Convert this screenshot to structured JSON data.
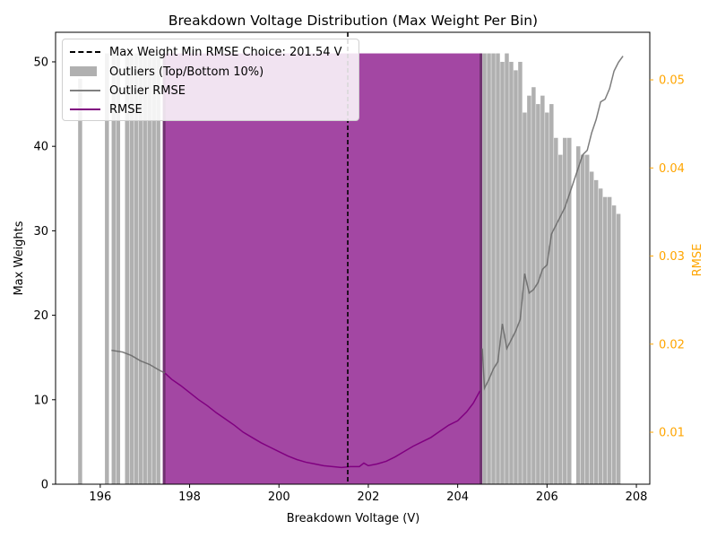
{
  "chart_data": {
    "type": "bar",
    "title": "Breakdown Voltage Distribution (Max Weight Per Bin)",
    "xlabel": "Breakdown Voltage (V)",
    "ylabel": "Max Weights",
    "y2label": "RMSE",
    "xlim": [
      195.0,
      208.3
    ],
    "ylim": [
      0,
      53.5
    ],
    "y2lim": [
      0.0041,
      0.0554
    ],
    "xticks": [
      196,
      198,
      200,
      202,
      204,
      206,
      208
    ],
    "yticks": [
      0,
      10,
      20,
      30,
      40,
      50
    ],
    "y2ticks": [
      0.01,
      0.02,
      0.03,
      0.04,
      0.05
    ],
    "y2_color": "#ffa500",
    "grid": false,
    "legend_position": "upper-left",
    "choice_line": {
      "x": 201.54,
      "label": "Max Weight Min RMSE Choice: 201.54 V"
    },
    "selected_region": {
      "x_start": 197.4,
      "x_end": 204.55,
      "height": 51,
      "color": "#800080"
    },
    "outlier_bars": {
      "name": "Outliers (Top/Bottom 10%)",
      "color": "#b0b0b0",
      "bin_width": 0.09,
      "x": [
        195.55,
        196.15,
        196.3,
        196.4,
        196.6,
        196.7,
        196.8,
        196.9,
        197.0,
        197.1,
        197.2,
        197.3,
        204.6,
        204.7,
        204.8,
        204.9,
        205.0,
        205.1,
        205.2,
        205.3,
        205.4,
        205.5,
        205.6,
        205.7,
        205.8,
        205.9,
        206.0,
        206.1,
        206.2,
        206.3,
        206.4,
        206.5,
        206.7,
        206.8,
        206.9,
        207.0,
        207.1,
        207.2,
        207.3,
        207.4,
        207.5,
        207.6
      ],
      "values": [
        48,
        51,
        51,
        51,
        51,
        51,
        51,
        51,
        51,
        51,
        51,
        51,
        51,
        51,
        51,
        51,
        50,
        51,
        50,
        49,
        50,
        44,
        46,
        47,
        45,
        46,
        44,
        45,
        41,
        39,
        41,
        41,
        40,
        39,
        39,
        37,
        36,
        35,
        34,
        34,
        33,
        32
      ]
    },
    "series": [
      {
        "name": "Outlier RMSE",
        "color": "#808080",
        "x": [
          196.25,
          196.5,
          196.7,
          196.9,
          197.1,
          197.3,
          197.45
        ],
        "values": [
          0.0193,
          0.0191,
          0.0187,
          0.0181,
          0.0177,
          0.0171,
          0.0167
        ]
      },
      {
        "name": "Outlier RMSE",
        "color": "#808080",
        "x": [
          204.55,
          204.6,
          204.7,
          204.8,
          204.9,
          205.0,
          205.1,
          205.2,
          205.3,
          205.4,
          205.5,
          205.6,
          205.7,
          205.8,
          205.9,
          206.0,
          206.1,
          206.2,
          206.3,
          206.4,
          206.5,
          206.6,
          206.7,
          206.8,
          206.9,
          207.0,
          207.1,
          207.2,
          207.3,
          207.4,
          207.5,
          207.6,
          207.7
        ],
        "values": [
          0.0195,
          0.015,
          0.016,
          0.0172,
          0.018,
          0.0223,
          0.0195,
          0.0205,
          0.0215,
          0.0228,
          0.028,
          0.0258,
          0.0262,
          0.027,
          0.0285,
          0.029,
          0.0325,
          0.0335,
          0.0345,
          0.0355,
          0.037,
          0.0385,
          0.04,
          0.0415,
          0.042,
          0.044,
          0.0455,
          0.0475,
          0.0478,
          0.049,
          0.051,
          0.052,
          0.0527
        ]
      },
      {
        "name": "RMSE",
        "color": "#800080",
        "x": [
          197.45,
          197.6,
          197.8,
          198.0,
          198.2,
          198.4,
          198.6,
          198.8,
          199.0,
          199.2,
          199.4,
          199.6,
          199.8,
          200.0,
          200.2,
          200.4,
          200.6,
          200.8,
          201.0,
          201.2,
          201.4,
          201.6,
          201.8,
          201.9,
          202.0,
          202.2,
          202.4,
          202.6,
          202.8,
          203.0,
          203.2,
          203.4,
          203.6,
          203.8,
          204.0,
          204.2,
          204.35,
          204.5
        ],
        "values": [
          0.0167,
          0.016,
          0.0153,
          0.0145,
          0.0137,
          0.013,
          0.0122,
          0.0115,
          0.0108,
          0.01,
          0.0094,
          0.0088,
          0.0083,
          0.0078,
          0.0073,
          0.0069,
          0.0066,
          0.0064,
          0.0062,
          0.0061,
          0.006,
          0.0061,
          0.0061,
          0.0065,
          0.0062,
          0.0064,
          0.0067,
          0.0072,
          0.0078,
          0.0084,
          0.0089,
          0.0094,
          0.0101,
          0.0108,
          0.0113,
          0.0123,
          0.0133,
          0.0147
        ]
      }
    ],
    "legend": [
      {
        "label": "Max Weight Min RMSE Choice: 201.54 V",
        "style": "dashed-line"
      },
      {
        "label": "Outliers (Top/Bottom 10%)",
        "style": "gray-patch"
      },
      {
        "label": "Outlier RMSE",
        "style": "gray-line"
      },
      {
        "label": "RMSE",
        "style": "purple-line"
      }
    ]
  }
}
